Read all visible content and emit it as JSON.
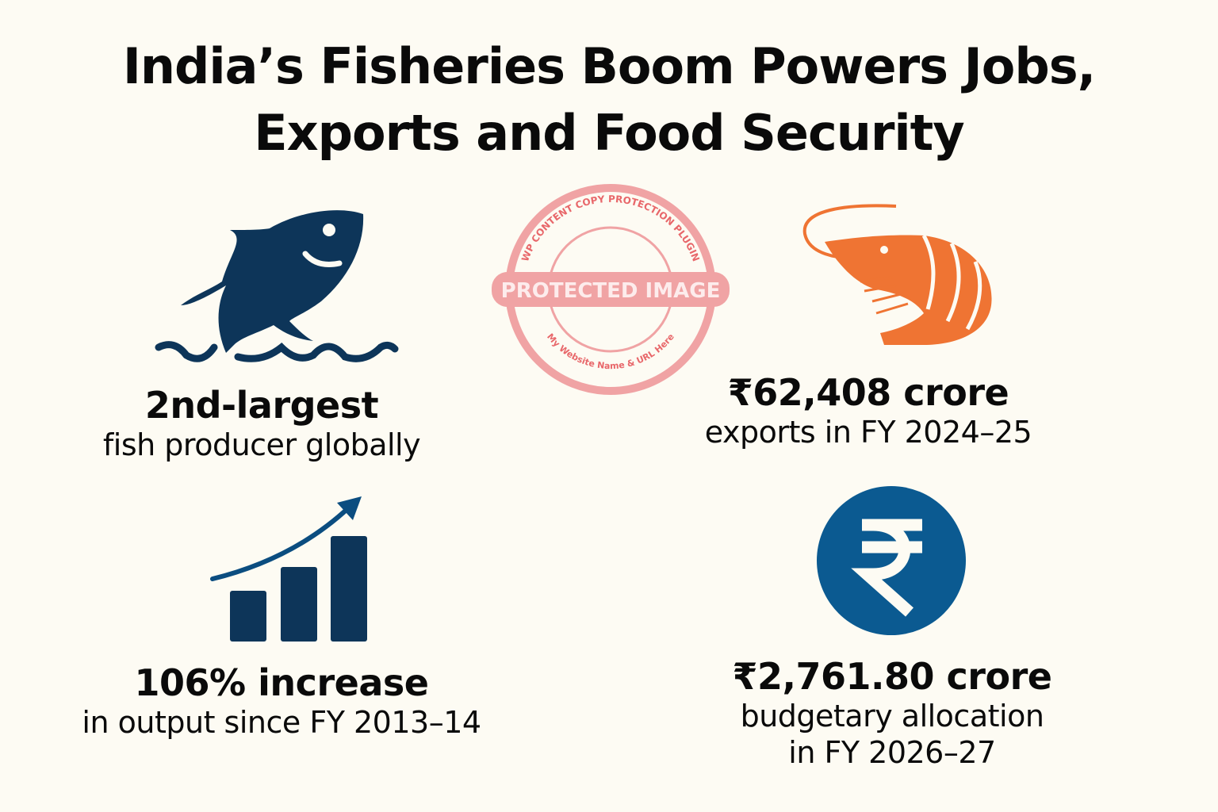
{
  "title": {
    "line1": "India’s Fisheries Boom Powers Jobs,",
    "line2": "Exports and Food Security"
  },
  "stats": [
    {
      "icon": "fish-jumping-icon",
      "headline": "2nd-largest",
      "caption": "fish producer globally"
    },
    {
      "icon": "shrimp-icon",
      "headline": "₹62,408 crore",
      "caption": "exports in FY 2024–25"
    },
    {
      "icon": "growth-bar-chart-icon",
      "headline": "106% increase",
      "caption": "in output since FY 2013–14"
    },
    {
      "icon": "rupee-coin-icon",
      "headline": "₹2,761.80 crore",
      "caption": "budgetary allocation",
      "caption2": "in FY 2026–27"
    }
  ],
  "watermark": {
    "text": "PROTECTED IMAGE",
    "ring_top": "WP CONTENT COPY PROTECTION PLUGIN",
    "ring_bottom": "My Website Name & URL Here"
  },
  "colors": {
    "navy": "#0d3559",
    "orange": "#ef7433",
    "blue": "#0b5a91",
    "stamp": "#e8676a",
    "background": "#fdfbf3"
  }
}
